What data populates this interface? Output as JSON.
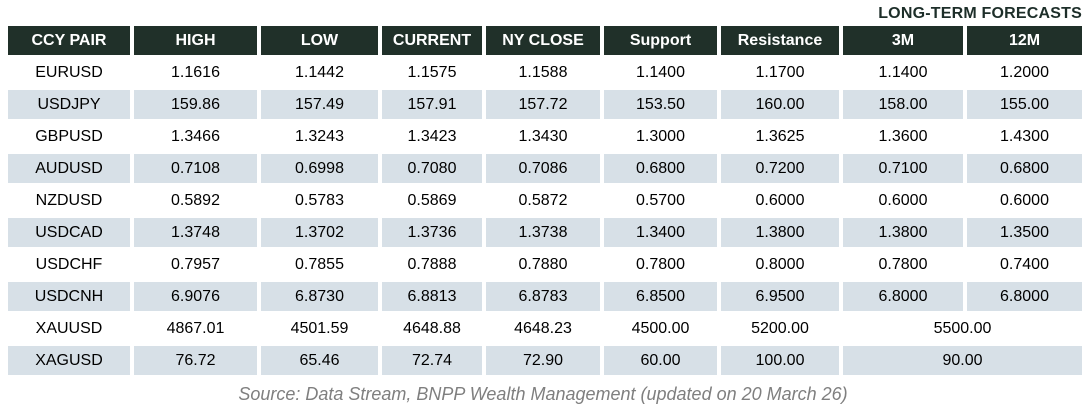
{
  "title": "LONG-TERM FORECASTS",
  "colors": {
    "header_bg": "#203029",
    "header_text": "#ffffff",
    "row_alt_bg": "#d7e0e7",
    "body_text": "#000000",
    "title_text": "#1d2e29",
    "source_text": "#7f7f7f"
  },
  "table": {
    "headers": [
      "CCY PAIR",
      "HIGH",
      "LOW",
      "CURRENT",
      "NY CLOSE",
      "Support",
      "Resistance",
      "3M",
      "12M"
    ],
    "rows": [
      {
        "cells": [
          "EURUSD",
          "1.1616",
          "1.1442",
          "1.1575",
          "1.1588",
          "1.1400",
          "1.1700",
          "1.1400",
          "1.2000"
        ],
        "shaded": false,
        "merged_forecast": false
      },
      {
        "cells": [
          "USDJPY",
          "159.86",
          "157.49",
          "157.91",
          "157.72",
          "153.50",
          "160.00",
          "158.00",
          "155.00"
        ],
        "shaded": true,
        "merged_forecast": false
      },
      {
        "cells": [
          "GBPUSD",
          "1.3466",
          "1.3243",
          "1.3423",
          "1.3430",
          "1.3000",
          "1.3625",
          "1.3600",
          "1.4300"
        ],
        "shaded": false,
        "merged_forecast": false
      },
      {
        "cells": [
          "AUDUSD",
          "0.7108",
          "0.6998",
          "0.7080",
          "0.7086",
          "0.6800",
          "0.7200",
          "0.7100",
          "0.6800"
        ],
        "shaded": true,
        "merged_forecast": false
      },
      {
        "cells": [
          "NZDUSD",
          "0.5892",
          "0.5783",
          "0.5869",
          "0.5872",
          "0.5700",
          "0.6000",
          "0.6000",
          "0.6000"
        ],
        "shaded": false,
        "merged_forecast": false
      },
      {
        "cells": [
          "USDCAD",
          "1.3748",
          "1.3702",
          "1.3736",
          "1.3738",
          "1.3400",
          "1.3800",
          "1.3800",
          "1.3500"
        ],
        "shaded": true,
        "merged_forecast": false
      },
      {
        "cells": [
          "USDCHF",
          "0.7957",
          "0.7855",
          "0.7888",
          "0.7880",
          "0.7800",
          "0.8000",
          "0.7800",
          "0.7400"
        ],
        "shaded": false,
        "merged_forecast": false
      },
      {
        "cells": [
          "USDCNH",
          "6.9076",
          "6.8730",
          "6.8813",
          "6.8783",
          "6.8500",
          "6.9500",
          "6.8000",
          "6.8000"
        ],
        "shaded": true,
        "merged_forecast": false
      },
      {
        "cells": [
          "XAUUSD",
          "4867.01",
          "4501.59",
          "4648.88",
          "4648.23",
          "4500.00",
          "5200.00",
          "5500.00"
        ],
        "shaded": false,
        "merged_forecast": true
      },
      {
        "cells": [
          "XAGUSD",
          "76.72",
          "65.46",
          "72.74",
          "72.90",
          "60.00",
          "100.00",
          "90.00"
        ],
        "shaded": true,
        "merged_forecast": true
      }
    ]
  },
  "footer": {
    "source": "Source: Data Stream, BNPP Wealth Management (updated on 20 March 26)"
  }
}
